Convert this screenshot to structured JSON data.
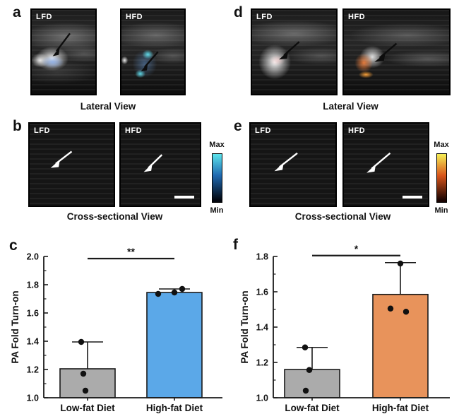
{
  "panels": {
    "a": {
      "letter": "a",
      "caption": "Lateral View",
      "images": [
        {
          "label": "LFD"
        },
        {
          "label": "HFD"
        }
      ]
    },
    "b": {
      "letter": "b",
      "caption": "Cross-sectional View",
      "images": [
        {
          "label": "LFD"
        },
        {
          "label": "HFD"
        }
      ],
      "colorbar": {
        "max_label": "Max",
        "min_label": "Min",
        "top_color": "#5CE4EC",
        "mid_color": "#1E68B0",
        "bottom_color": "#02060F"
      }
    },
    "c": {
      "letter": "c"
    },
    "d": {
      "letter": "d",
      "caption": "Lateral View",
      "images": [
        {
          "label": "LFD"
        },
        {
          "label": "HFD"
        }
      ]
    },
    "e": {
      "letter": "e",
      "caption": "Cross-sectional View",
      "images": [
        {
          "label": "LFD"
        },
        {
          "label": "HFD"
        }
      ],
      "colorbar": {
        "max_label": "Max",
        "min_label": "Min",
        "top_color": "#F6EF55",
        "mid_color": "#D8541A",
        "bottom_color": "#1A0402"
      }
    },
    "f": {
      "letter": "f"
    }
  },
  "chart_data": [
    {
      "panel": "c",
      "type": "bar",
      "categories": [
        "Low-fat Diet",
        "High-fat Diet"
      ],
      "series": [
        {
          "name": "PA Fold Turn-on",
          "values": [
            1.205,
            1.745
          ]
        }
      ],
      "errors_plus": [
        0.19,
        0.025
      ],
      "data_points": [
        [
          1.395,
          1.17,
          1.05
        ],
        [
          1.735,
          1.745,
          1.77
        ]
      ],
      "bar_colors": [
        "#ABABAB",
        "#5BA8E8"
      ],
      "bar_edge_color": "#1A1A1A",
      "ylabel": "PA Fold Turn-on",
      "xlabel": "",
      "ylim": [
        1.0,
        2.0
      ],
      "yticks": [
        "1.0",
        "1.2",
        "1.4",
        "1.6",
        "1.8",
        "2.0"
      ],
      "grid": false,
      "legend": false,
      "significance": {
        "label": "**",
        "y": 1.985
      }
    },
    {
      "panel": "f",
      "type": "bar",
      "categories": [
        "Low-fat Diet",
        "High-fat Diet"
      ],
      "series": [
        {
          "name": "PA Fold Turn-on",
          "values": [
            1.16,
            1.585
          ]
        }
      ],
      "errors_plus": [
        0.125,
        0.18
      ],
      "data_points": [
        [
          1.285,
          1.157,
          1.04
        ],
        [
          1.76,
          1.505,
          1.487
        ]
      ],
      "bar_colors": [
        "#ABABAB",
        "#E8935B"
      ],
      "bar_edge_color": "#1A1A1A",
      "ylabel": "PA Fold Turn-on",
      "xlabel": "",
      "ylim": [
        1.0,
        1.8
      ],
      "yticks": [
        "1.0",
        "1.2",
        "1.4",
        "1.6",
        "1.8"
      ],
      "grid": false,
      "legend": false,
      "significance": {
        "label": "*",
        "y": 1.805
      }
    }
  ]
}
